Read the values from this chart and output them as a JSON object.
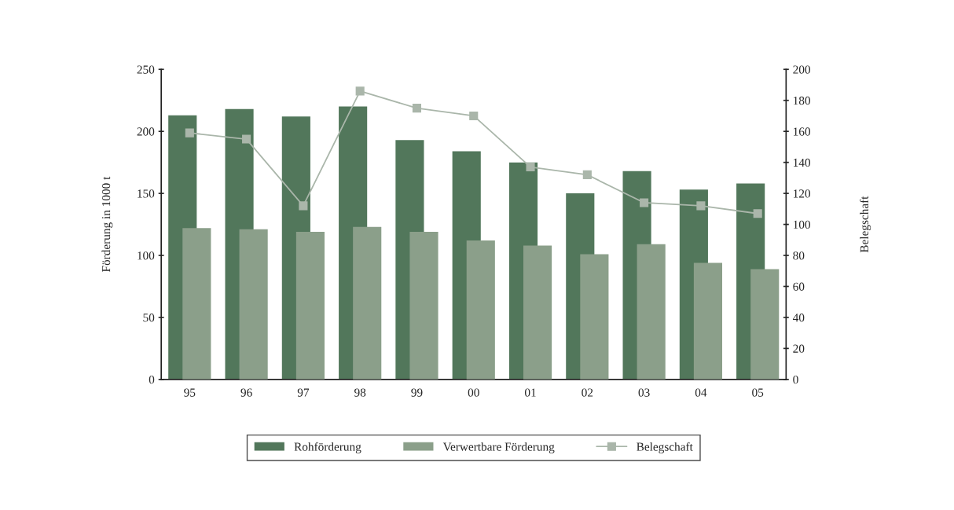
{
  "chart_data": {
    "type": "bar",
    "categories": [
      "95",
      "96",
      "97",
      "98",
      "99",
      "00",
      "01",
      "02",
      "03",
      "04",
      "05"
    ],
    "ylabel": "Förderung in 1000 t",
    "y2label": "Belegschaft",
    "ylim": [
      0,
      250
    ],
    "yticks": [
      0,
      50,
      100,
      150,
      200,
      250
    ],
    "y2lim": [
      0,
      200
    ],
    "y2ticks": [
      0,
      20,
      40,
      60,
      80,
      100,
      120,
      140,
      160,
      180,
      200
    ],
    "series": [
      {
        "name": "Rohförderung",
        "color": "#52775b",
        "values": [
          213,
          218,
          212,
          220,
          193,
          184,
          175,
          150,
          168,
          153,
          158
        ]
      },
      {
        "name": "Verwertbare Förderung",
        "color": "#8b9f8a",
        "values": [
          122,
          121,
          119,
          123,
          119,
          112,
          108,
          101,
          109,
          94,
          89
        ]
      },
      {
        "name": "Belegschaft",
        "type": "line",
        "axis": "y2",
        "color": "#aab6aa",
        "marker": "square",
        "values": [
          159,
          155,
          112,
          186,
          175,
          170,
          137,
          132,
          114,
          112,
          107
        ]
      }
    ],
    "legend": "bottom",
    "grid": false
  }
}
